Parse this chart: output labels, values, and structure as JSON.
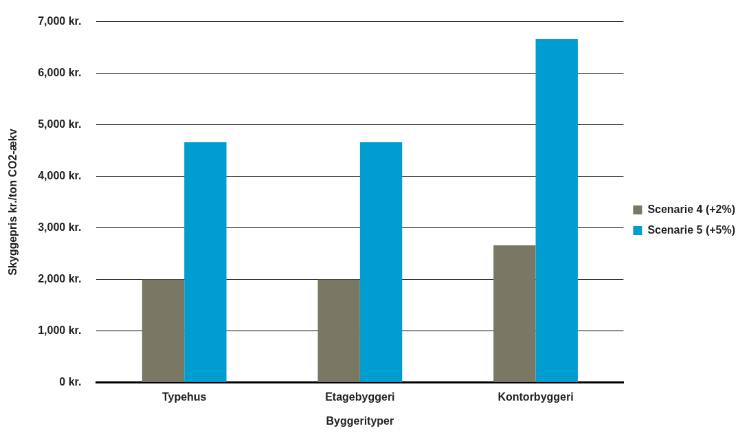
{
  "chart_data": {
    "type": "bar",
    "xlabel": "Byggerityper",
    "ylabel": "Skyggepris kr./ton CO2-ækv",
    "categories": [
      "Typehus",
      "Etagebyggeri",
      "Kontorbyggeri"
    ],
    "series": [
      {
        "name": "Scenarie 4 (+2%)",
        "color": "#797865",
        "values": [
          2000,
          2000,
          2660
        ]
      },
      {
        "name": "Scenarie 5 (+5%)",
        "color": "#009dd0",
        "values": [
          4660,
          4660,
          6660
        ]
      }
    ],
    "ylim": [
      0,
      7000
    ],
    "yticks": [
      {
        "value": 0,
        "label": "0 kr."
      },
      {
        "value": 1000,
        "label": "1,000 kr."
      },
      {
        "value": 2000,
        "label": "2,000 kr."
      },
      {
        "value": 3000,
        "label": "3,000 kr."
      },
      {
        "value": 4000,
        "label": "4,000 kr."
      },
      {
        "value": 5000,
        "label": "5,000 kr."
      },
      {
        "value": 6000,
        "label": "6,000 kr."
      },
      {
        "value": 7000,
        "label": "7,000 kr."
      }
    ],
    "grid": "y",
    "legend": "right"
  }
}
